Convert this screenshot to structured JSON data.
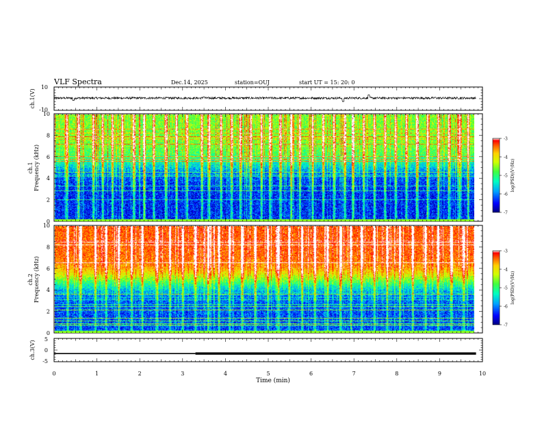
{
  "header": {
    "title": "VLF Spectra",
    "date": "Dec.14, 2025",
    "station": "station=OUJ",
    "start": "start  UT =   15: 20: 0"
  },
  "chart_data": [
    {
      "type": "line",
      "panel": "ch1-waveform",
      "ylabel": "ch.1(V)",
      "ylim": [
        -10,
        10
      ],
      "yticks": [
        10,
        -10
      ],
      "xlim": [
        0,
        10
      ],
      "baseline": 0.5,
      "noise_amplitude": 0.9,
      "spikes": [
        {
          "x": 0.45,
          "y": -1.5
        },
        {
          "x": 3.5,
          "y": 1.5
        },
        {
          "x": 6.75,
          "y": -2.5
        },
        {
          "x": 7.35,
          "y": 3.2
        },
        {
          "x": 8.9,
          "y": 1.2
        }
      ]
    },
    {
      "type": "heatmap",
      "panel": "ch1-spectrogram",
      "ylabel_line1": "ch.1",
      "ylabel_line2": "Frequency (kHz)",
      "ylim": [
        0,
        10
      ],
      "yticks": [
        0,
        2,
        4,
        6,
        8,
        10
      ],
      "xlim": [
        0,
        9.85
      ],
      "colorbar": {
        "label": "log(PSD)(V²/Hz)",
        "range": [
          -7,
          -3
        ],
        "ticks": [
          -3,
          -4,
          -5,
          -6,
          -7
        ]
      },
      "lower_intensity": 0.12,
      "upper_intensity": 0.48,
      "transition_khz": 5.3,
      "burst_intensity": 0.62,
      "bursts": [
        0.28,
        0.55,
        0.9,
        1.12,
        1.35,
        1.58,
        1.85,
        2.1,
        2.32,
        2.6,
        2.85,
        3.1,
        3.45,
        3.62,
        3.9,
        4.15,
        4.35,
        4.6,
        4.85,
        5.05,
        5.3,
        5.55,
        5.75,
        6.05,
        6.3,
        6.55,
        6.8,
        7.0,
        7.25,
        7.5,
        7.75,
        8.0,
        8.25,
        8.5,
        8.75,
        9.0,
        9.25,
        9.5,
        9.7
      ]
    },
    {
      "type": "heatmap",
      "panel": "ch2-spectrogram",
      "ylabel_line1": "ch.2",
      "ylabel_line2": "Frequency (kHz)",
      "ylim": [
        0,
        10
      ],
      "yticks": [
        0,
        2,
        4,
        6,
        8,
        10
      ],
      "xlim": [
        0,
        9.85
      ],
      "colorbar": {
        "label": "log(PSD)(V²/Hz)",
        "range": [
          -7,
          -3
        ],
        "ticks": [
          -3,
          -4,
          -5,
          -6,
          -7
        ]
      },
      "lower_intensity": 0.15,
      "upper_intensity": 0.78,
      "transition_khz": 5.0,
      "burst_intensity": 0.5,
      "bursts": [
        0.3,
        0.6,
        0.95,
        1.2,
        1.5,
        1.8,
        2.05,
        2.4,
        2.7,
        3.0,
        3.3,
        3.6,
        3.85,
        4.1,
        4.4,
        4.7,
        5.0,
        5.25,
        5.5,
        5.8,
        6.1,
        6.4,
        6.7,
        6.95,
        7.2,
        7.5,
        7.8,
        8.1,
        8.4,
        8.7,
        9.0,
        9.3,
        9.6
      ]
    },
    {
      "type": "line",
      "panel": "ch3-signal",
      "ylabel": "ch.3(V)",
      "ylim": [
        -5,
        5
      ],
      "yticks": [
        5,
        0,
        -5
      ],
      "xlim": [
        0,
        10
      ],
      "xlabel": "Time (min)",
      "xticks": [
        0,
        1,
        2,
        3,
        4,
        5,
        6,
        7,
        8,
        9,
        10
      ],
      "level": -1.5,
      "thin_until": 3.3,
      "end": 9.85
    }
  ],
  "colors": {
    "frame": "#000000",
    "colormap": [
      "#000080",
      "#0000ff",
      "#00a0ff",
      "#00ffc0",
      "#40ff40",
      "#d0ff00",
      "#ffd000",
      "#ff6000",
      "#ff0000",
      "#ffffff"
    ]
  }
}
